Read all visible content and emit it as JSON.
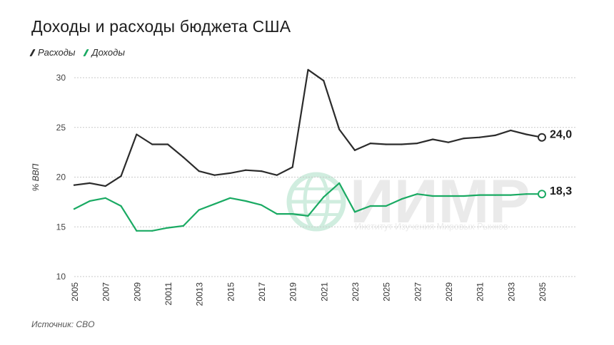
{
  "title": "Доходы и расходы бюджета США",
  "legend": [
    {
      "name": "Расходы",
      "color": "#2b2b2b"
    },
    {
      "name": "Доходы",
      "color": "#1aaa63"
    }
  ],
  "source": "Источник: CBO",
  "watermark": {
    "logo_text": "ИИМР",
    "subtitle": "Институт Изучения Мировых Рынков"
  },
  "chart_data": {
    "type": "line",
    "ylabel": "% ВВП",
    "xlabel": "",
    "ylim": [
      10,
      31
    ],
    "yticks": [
      10,
      15,
      20,
      25,
      30
    ],
    "grid": true,
    "x_ticks": [
      "2005",
      "2007",
      "2009",
      "20011",
      "20013",
      "2015",
      "2017",
      "2019",
      "2021",
      "2023",
      "2025",
      "2027",
      "2029",
      "2031",
      "2033",
      "2035"
    ],
    "x": [
      2005,
      2006,
      2007,
      2008,
      2009,
      2010,
      2011,
      2012,
      2013,
      2014,
      2015,
      2016,
      2017,
      2018,
      2019,
      2020,
      2021,
      2022,
      2023,
      2024,
      2025,
      2026,
      2027,
      2028,
      2029,
      2030,
      2031,
      2032,
      2033,
      2034,
      2035
    ],
    "series": [
      {
        "name": "Расходы",
        "color": "#2b2b2b",
        "end_label": "24,0",
        "values": [
          19.2,
          19.4,
          19.1,
          20.1,
          24.3,
          23.3,
          23.3,
          22.0,
          20.6,
          20.2,
          20.4,
          20.7,
          20.6,
          20.2,
          21.0,
          30.8,
          29.7,
          24.8,
          22.7,
          23.4,
          23.3,
          23.3,
          23.4,
          23.8,
          23.5,
          23.9,
          24.0,
          24.2,
          24.7,
          24.3,
          24.0
        ]
      },
      {
        "name": "Доходы",
        "color": "#1aaa63",
        "end_label": "18,3",
        "values": [
          16.8,
          17.6,
          17.9,
          17.1,
          14.6,
          14.6,
          14.9,
          15.1,
          16.7,
          17.3,
          17.9,
          17.6,
          17.2,
          16.3,
          16.3,
          16.1,
          18.0,
          19.4,
          16.5,
          17.1,
          17.1,
          17.8,
          18.3,
          18.1,
          18.1,
          18.1,
          18.2,
          18.2,
          18.2,
          18.3,
          18.3
        ]
      }
    ]
  }
}
